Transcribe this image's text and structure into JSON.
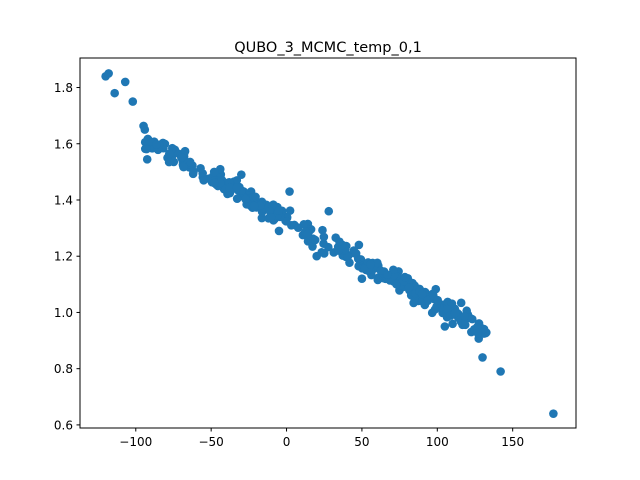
{
  "chart_data": {
    "type": "scatter",
    "title": "QUBO_3_MCMC_temp_0,1",
    "xlabel": "",
    "ylabel": "",
    "xlim": [
      -137,
      192
    ],
    "ylim": [
      0.589,
      1.905
    ],
    "grid": false,
    "marker_color": "#1f77b4",
    "x_ticks": [
      -100,
      -50,
      0,
      50,
      100,
      150
    ],
    "x_tick_labels": [
      "−100",
      "−50",
      "0",
      "50",
      "100",
      "150"
    ],
    "y_ticks": [
      0.6,
      0.8,
      1.0,
      1.2,
      1.4,
      1.6,
      1.8
    ],
    "y_tick_labels": [
      "0.6",
      "0.8",
      "1.0",
      "1.2",
      "1.4",
      "1.6",
      "1.8"
    ],
    "trend": {
      "slope": -0.003,
      "intercept": 1.33,
      "x_min": -95,
      "x_max": 133,
      "n": 320,
      "spread": 0.018
    },
    "points": [
      {
        "x": -120,
        "y": 1.84
      },
      {
        "x": -118,
        "y": 1.85
      },
      {
        "x": -114,
        "y": 1.78
      },
      {
        "x": -107,
        "y": 1.82
      },
      {
        "x": -102,
        "y": 1.75
      },
      {
        "x": 2,
        "y": 1.43
      },
      {
        "x": -30,
        "y": 1.49
      },
      {
        "x": -48,
        "y": 1.5
      },
      {
        "x": 20,
        "y": 1.2
      },
      {
        "x": 25,
        "y": 1.21
      },
      {
        "x": 50,
        "y": 1.12
      },
      {
        "x": 48,
        "y": 1.24
      },
      {
        "x": -5,
        "y": 1.29
      },
      {
        "x": 28,
        "y": 1.36
      },
      {
        "x": 105,
        "y": 0.95
      },
      {
        "x": 130,
        "y": 0.84
      },
      {
        "x": 142,
        "y": 0.79
      },
      {
        "x": 177,
        "y": 0.64
      }
    ]
  }
}
